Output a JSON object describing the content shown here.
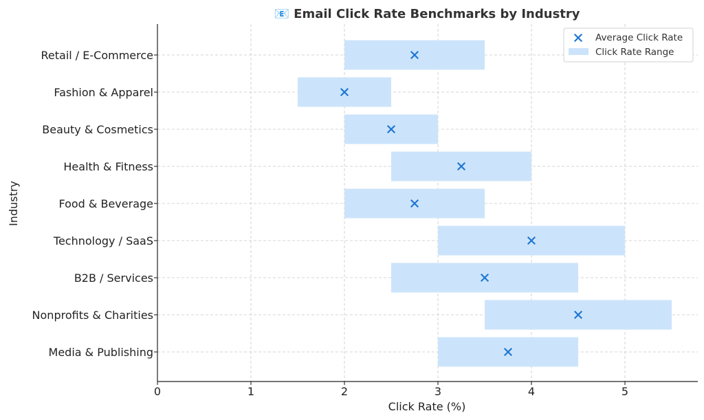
{
  "chart_data": {
    "type": "range-bar-with-markers",
    "title": "📧 Email Click Rate Benchmarks by Industry",
    "xlabel": "Click Rate (%)",
    "ylabel": "Industry",
    "xlim": [
      0,
      5.8
    ],
    "xticks": [
      0,
      1,
      2,
      3,
      4,
      5
    ],
    "grid": true,
    "legend_position": "top-right",
    "categories": [
      "Retail / E-Commerce",
      "Fashion & Apparel",
      "Beauty & Cosmetics",
      "Health & Fitness",
      "Food & Beverage",
      "Technology / SaaS",
      "B2B / Services",
      "Nonprofits & Charities",
      "Media & Publishing"
    ],
    "series": [
      {
        "name": "Average Click Rate",
        "kind": "marker",
        "marker": "x",
        "color": "#1f77d4",
        "values": [
          2.75,
          2.0,
          2.5,
          3.25,
          2.75,
          4.0,
          3.5,
          4.5,
          3.75
        ]
      },
      {
        "name": "Click Rate Range",
        "kind": "range",
        "color": "#cce4fb",
        "ranges": [
          [
            2.0,
            3.5
          ],
          [
            1.5,
            2.5
          ],
          [
            2.0,
            3.0
          ],
          [
            2.5,
            4.0
          ],
          [
            2.0,
            3.5
          ],
          [
            3.0,
            5.0
          ],
          [
            2.5,
            4.5
          ],
          [
            3.5,
            5.5
          ],
          [
            3.0,
            4.5
          ]
        ]
      }
    ]
  }
}
